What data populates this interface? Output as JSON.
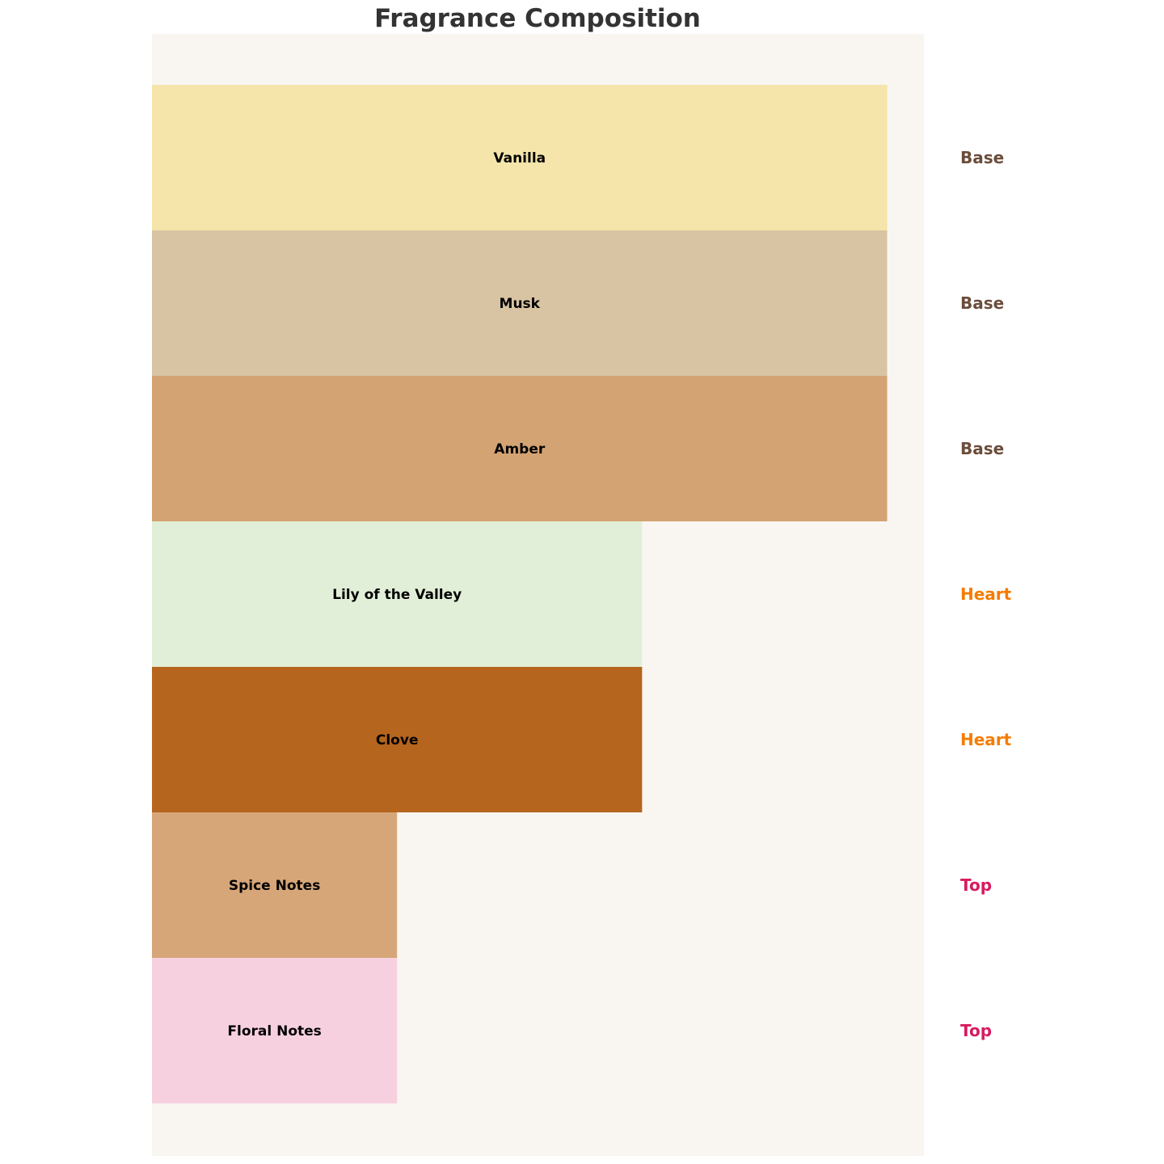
{
  "chart_data": {
    "type": "bar",
    "orientation": "horizontal",
    "title": "Fragrance Composition",
    "xlim": [
      0,
      3.15
    ],
    "grid": false,
    "axes_visible": false,
    "background_color": "#F9F6F1",
    "bars": [
      {
        "label": "Vanilla",
        "value": 3,
        "layer": "Base",
        "color": "#F5E5AA"
      },
      {
        "label": "Musk",
        "value": 3,
        "layer": "Base",
        "color": "#D8C4A2"
      },
      {
        "label": "Amber",
        "value": 3,
        "layer": "Base",
        "color": "#D4A373"
      },
      {
        "label": "Lily of the Valley",
        "value": 2,
        "layer": "Heart",
        "color": "#E2EFD8"
      },
      {
        "label": "Clove",
        "value": 2,
        "layer": "Heart",
        "color": "#B5651D"
      },
      {
        "label": "Spice Notes",
        "value": 1,
        "layer": "Top",
        "color": "#D6A679"
      },
      {
        "label": "Floral Notes",
        "value": 1,
        "layer": "Top",
        "color": "#F7D0E0"
      }
    ],
    "layer_colors": {
      "Base": "#6B4C3B",
      "Heart": "#F57C00",
      "Top": "#D81B60"
    }
  }
}
